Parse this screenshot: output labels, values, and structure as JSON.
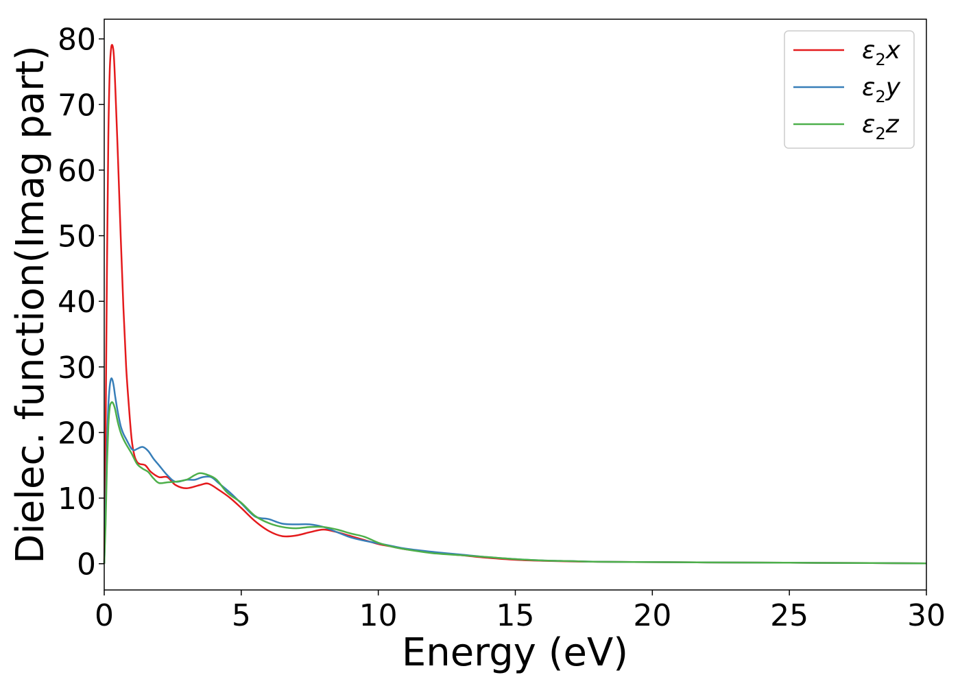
{
  "chart_data": {
    "type": "line",
    "title": "",
    "xlabel": "Energy (eV)",
    "ylabel": "Dielec. function(Imag part)",
    "xlim": [
      0,
      30
    ],
    "ylim": [
      -4,
      83
    ],
    "xticks": [
      0,
      5,
      10,
      15,
      20,
      25,
      30
    ],
    "yticks": [
      0,
      10,
      20,
      30,
      40,
      50,
      60,
      70,
      80
    ],
    "grid": false,
    "legend_position": "top-right",
    "series": [
      {
        "name": "ε₂x",
        "legend": {
          "base": "ε",
          "sub": "2",
          "var": "x"
        },
        "color": "#e41a1c",
        "x": [
          0,
          0.05,
          0.1,
          0.15,
          0.2,
          0.25,
          0.3,
          0.35,
          0.4,
          0.5,
          0.6,
          0.7,
          0.8,
          0.9,
          1.0,
          1.1,
          1.2,
          1.3,
          1.5,
          1.7,
          2.0,
          2.3,
          2.6,
          3.0,
          3.5,
          3.8,
          4.2,
          4.6,
          5.0,
          5.5,
          6.0,
          6.5,
          7.0,
          7.5,
          8.0,
          8.5,
          9.0,
          9.5,
          10.0,
          10.5,
          11,
          12,
          13,
          14,
          15,
          16,
          17,
          18,
          20,
          22,
          25,
          28,
          30
        ],
        "y": [
          0,
          20,
          45,
          65,
          75,
          78.5,
          79,
          77.5,
          73,
          62,
          50,
          39,
          30,
          24,
          19,
          16.5,
          15.5,
          15.2,
          15,
          14,
          13.2,
          13.2,
          12,
          11.5,
          12,
          12.2,
          11.2,
          10,
          8.5,
          6.5,
          5,
          4.2,
          4.3,
          4.8,
          5.2,
          4.8,
          4.2,
          3.6,
          3.0,
          2.6,
          2.2,
          1.7,
          1.3,
          0.9,
          0.6,
          0.45,
          0.35,
          0.3,
          0.25,
          0.2,
          0.15,
          0.1,
          0.05
        ]
      },
      {
        "name": "ε₂y",
        "legend": {
          "base": "ε",
          "sub": "2",
          "var": "y"
        },
        "color": "#377eb8",
        "x": [
          0,
          0.05,
          0.1,
          0.15,
          0.2,
          0.25,
          0.3,
          0.35,
          0.4,
          0.5,
          0.6,
          0.7,
          0.8,
          0.9,
          1.0,
          1.1,
          1.2,
          1.4,
          1.6,
          1.8,
          2.0,
          2.3,
          2.6,
          3.0,
          3.3,
          3.6,
          3.9,
          4.2,
          4.6,
          5.0,
          5.5,
          6.0,
          6.5,
          7.0,
          7.5,
          8.0,
          8.5,
          9.0,
          9.5,
          10.0,
          10.5,
          11,
          12,
          13,
          14,
          15,
          16,
          17,
          18,
          20,
          22,
          25,
          28,
          30
        ],
        "y": [
          0,
          8,
          18,
          24,
          27,
          28.2,
          28,
          27,
          25.5,
          23,
          21,
          19.8,
          19,
          18.2,
          17.5,
          17.3,
          17.5,
          17.8,
          17.2,
          16,
          15,
          13.5,
          12.5,
          12.8,
          12.8,
          13.2,
          13.2,
          12.2,
          10.8,
          9.2,
          7.2,
          6.8,
          6.1,
          6,
          6,
          5.6,
          4.8,
          4,
          3.5,
          3.1,
          2.7,
          2.3,
          1.8,
          1.4,
          1.0,
          0.7,
          0.5,
          0.4,
          0.3,
          0.25,
          0.2,
          0.15,
          0.1,
          0.05
        ]
      },
      {
        "name": "ε₂z",
        "legend": {
          "base": "ε",
          "sub": "2",
          "var": "z"
        },
        "color": "#4daf4a",
        "x": [
          0,
          0.05,
          0.1,
          0.15,
          0.2,
          0.25,
          0.3,
          0.35,
          0.4,
          0.5,
          0.6,
          0.7,
          0.8,
          0.9,
          1.0,
          1.2,
          1.4,
          1.6,
          1.8,
          2.0,
          2.3,
          2.6,
          3.0,
          3.3,
          3.5,
          3.8,
          4.1,
          4.5,
          5.0,
          5.5,
          6.0,
          6.5,
          7.0,
          7.5,
          8.0,
          8.5,
          9.0,
          9.5,
          10.0,
          10.5,
          11,
          12,
          13,
          14,
          15,
          16,
          17,
          18,
          20,
          22,
          25,
          28,
          30
        ],
        "y": [
          0,
          6,
          15,
          21,
          23.8,
          24.5,
          24.6,
          24.2,
          23.5,
          21.5,
          20,
          19,
          18.2,
          17.5,
          16.8,
          15.2,
          14.5,
          14,
          13,
          12.3,
          12.4,
          12.5,
          12.8,
          13.5,
          13.8,
          13.5,
          12.8,
          10.8,
          9.3,
          7.3,
          6.2,
          5.6,
          5.4,
          5.6,
          5.6,
          5.2,
          4.6,
          4.1,
          3.2,
          2.6,
          2.2,
          1.6,
          1.3,
          1.0,
          0.7,
          0.5,
          0.4,
          0.3,
          0.25,
          0.2,
          0.15,
          0.1,
          0.05
        ]
      }
    ]
  }
}
